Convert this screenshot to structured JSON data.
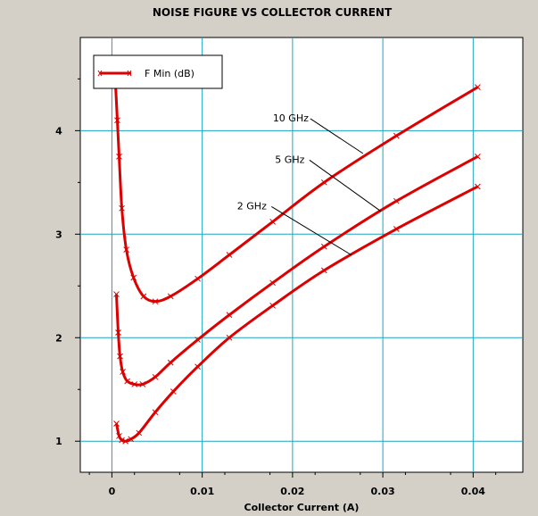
{
  "chart_data": {
    "type": "line",
    "title": "NOISE FIGURE VS COLLECTOR CURRENT",
    "xlabel": "Collector Current (A)",
    "ylabel": "",
    "xlim": [
      -0.0035,
      0.0455
    ],
    "ylim": [
      0.7,
      4.9
    ],
    "x_ticks": [
      0,
      0.01,
      0.02,
      0.03,
      0.04
    ],
    "x_tick_labels": [
      "0",
      "0.01",
      "0.02",
      "0.03",
      "0.04"
    ],
    "y_ticks": [
      1,
      2,
      3,
      4
    ],
    "y_tick_labels": [
      "1",
      "2",
      "3",
      "4"
    ],
    "grid": true,
    "legend": {
      "position": "top-left",
      "entries": [
        "F Min (dB)"
      ]
    },
    "colors": {
      "series": "#dd0000",
      "grid": "#1aa6c4",
      "background": "#ffffff",
      "annotation": "#000000"
    },
    "series": [
      {
        "name": "F Min (dB)",
        "annotation": "10 GHz",
        "x": [
          0.0004,
          0.0006,
          0.0008,
          0.0011,
          0.0016,
          0.0024,
          0.0035,
          0.0048,
          0.0065,
          0.0095,
          0.013,
          0.0178,
          0.0235,
          0.0315,
          0.0405
        ],
        "y": [
          4.45,
          4.1,
          3.75,
          3.25,
          2.85,
          2.58,
          2.4,
          2.35,
          2.4,
          2.57,
          2.8,
          3.12,
          3.5,
          3.95,
          4.42
        ]
      },
      {
        "name": "F Min (dB)",
        "annotation": "5 GHz",
        "x": [
          0.0005,
          0.0007,
          0.0009,
          0.0012,
          0.0017,
          0.0025,
          0.0034,
          0.0048,
          0.0065,
          0.0095,
          0.013,
          0.0178,
          0.0235,
          0.0315,
          0.0405
        ],
        "y": [
          2.42,
          2.05,
          1.82,
          1.67,
          1.58,
          1.55,
          1.55,
          1.62,
          1.76,
          1.98,
          2.22,
          2.53,
          2.88,
          3.32,
          3.75
        ]
      },
      {
        "name": "F Min (dB)",
        "annotation": "2 GHz",
        "x": [
          0.0005,
          0.0008,
          0.0011,
          0.0015,
          0.0021,
          0.003,
          0.0048,
          0.0068,
          0.0095,
          0.013,
          0.0178,
          0.0235,
          0.0315,
          0.0405
        ],
        "y": [
          1.17,
          1.05,
          1.01,
          1.0,
          1.02,
          1.08,
          1.28,
          1.48,
          1.72,
          2.0,
          2.31,
          2.65,
          3.05,
          3.46
        ]
      }
    ],
    "annotations": [
      {
        "text": "10 GHz",
        "x": 0.0198,
        "y": 4.09,
        "to_x": 0.0278,
        "to_y": 3.78
      },
      {
        "text": "5 GHz",
        "x": 0.0197,
        "y": 3.69,
        "to_x": 0.0298,
        "to_y": 3.22
      },
      {
        "text": "2 GHz",
        "x": 0.0155,
        "y": 3.24,
        "to_x": 0.0265,
        "to_y": 2.8
      }
    ]
  }
}
